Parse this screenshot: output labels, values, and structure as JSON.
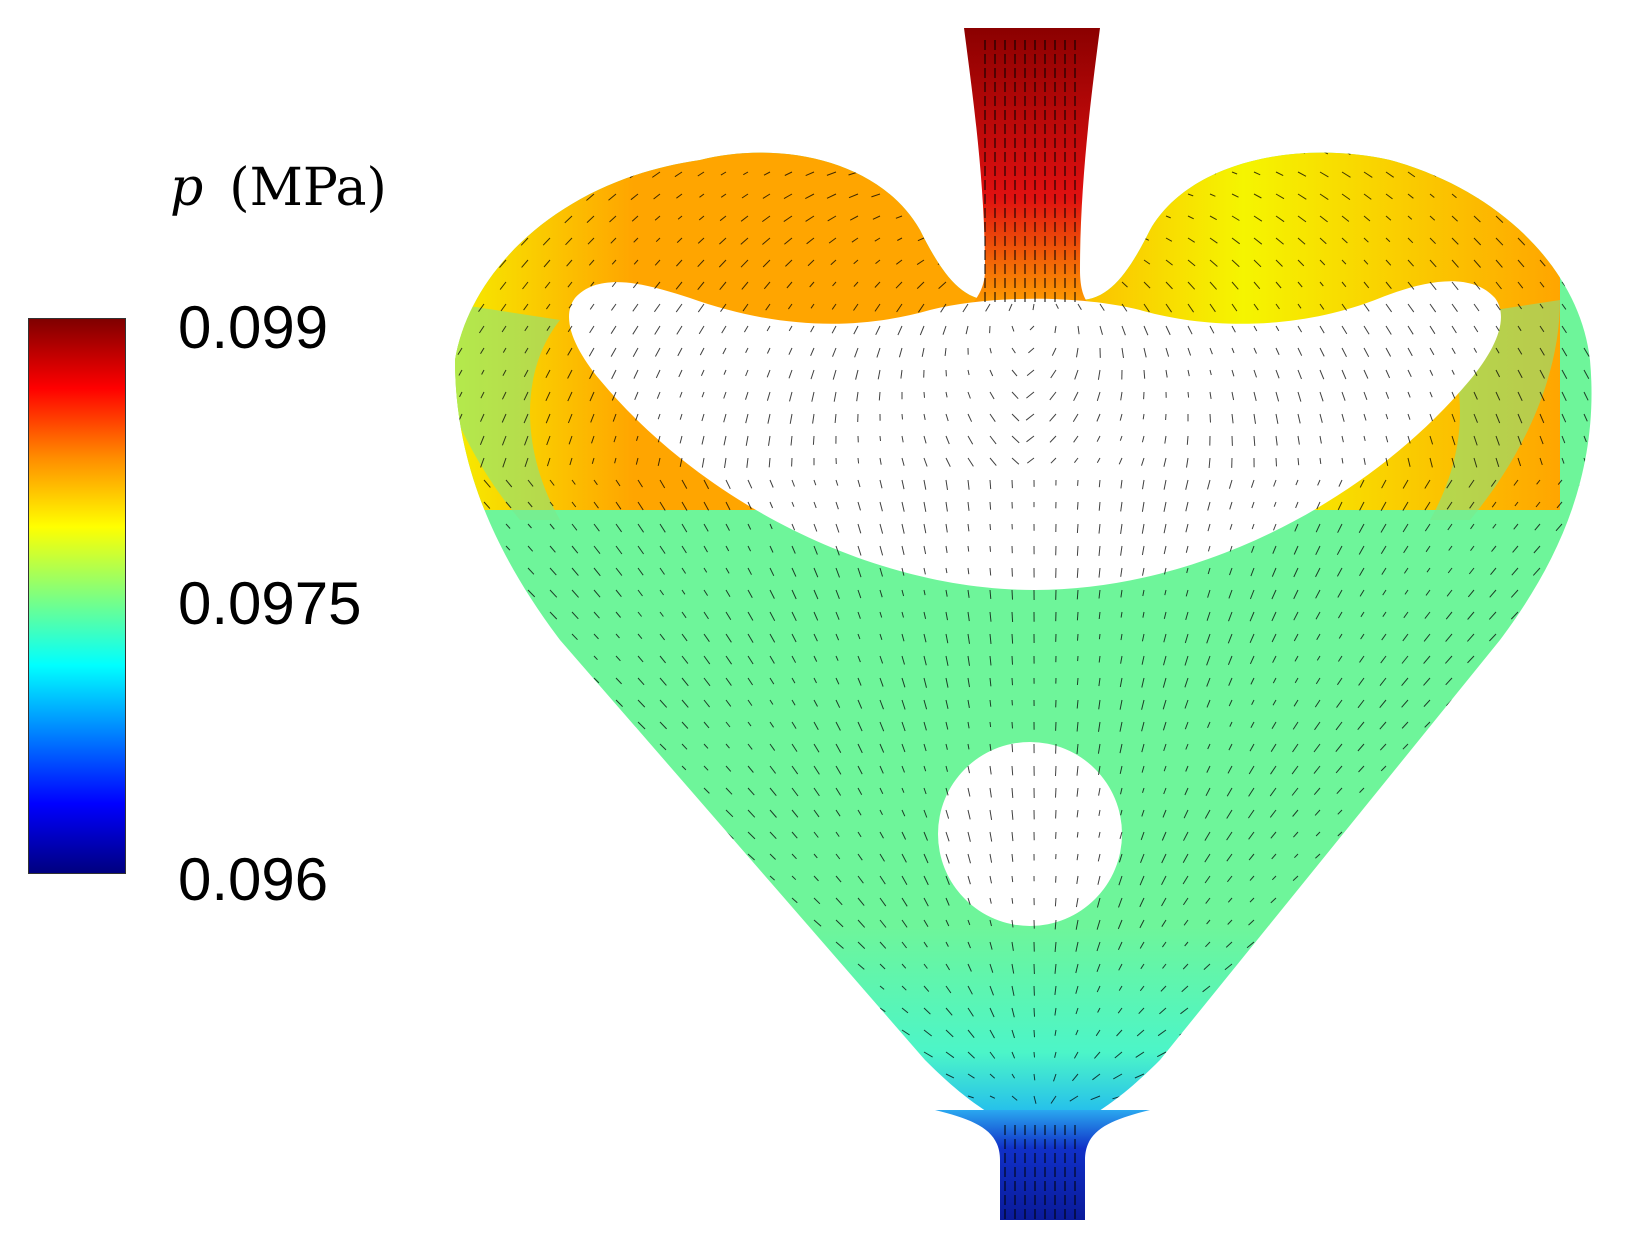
{
  "legend": {
    "symbol": "p",
    "unit": "(MPa)",
    "ticks": [
      "0.099",
      "0.0975",
      "0.096"
    ]
  },
  "colormap": {
    "name": "jet",
    "stops": [
      "#7f0000",
      "#ff0000",
      "#ff8c00",
      "#ffff00",
      "#7fff7f",
      "#00ffff",
      "#0080ff",
      "#0000ff",
      "#00007f"
    ]
  },
  "field_colors": {
    "inlet_top": "#8b0000",
    "upper_lobes": "#ffa500",
    "upper_center": "#e81e00",
    "lobe_highlight": "#f5f500",
    "body": "#6ef59a",
    "lower_body": "#4cf5c8",
    "outlet": "#0a1a9a",
    "arrows": "#000000"
  }
}
